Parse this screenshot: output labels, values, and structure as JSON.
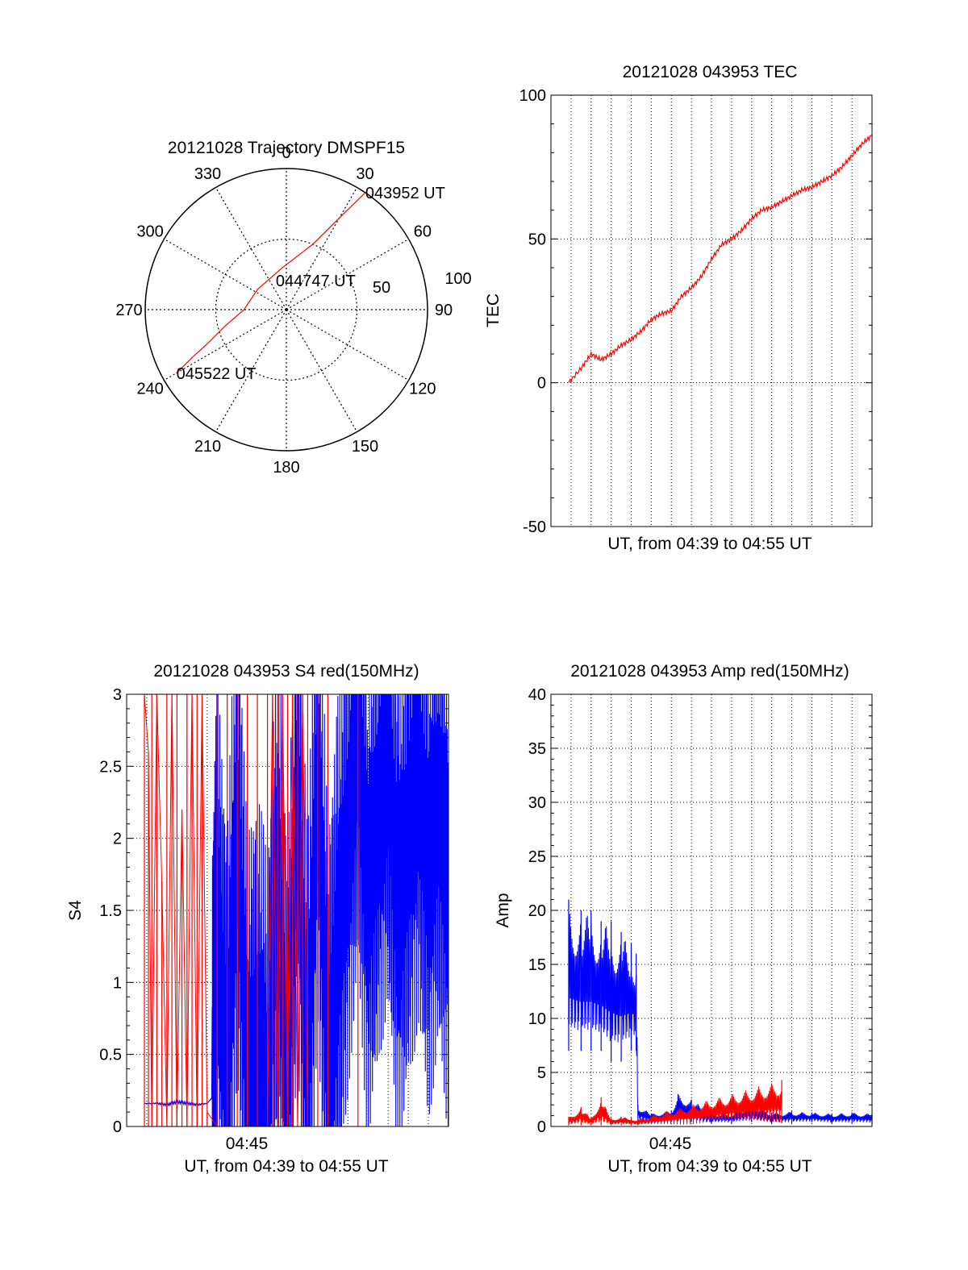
{
  "chart_data": [
    {
      "type": "polar",
      "title": "20121028 Trajectory DMSPF15",
      "angular_ticks": [
        "0",
        "30",
        "60",
        "90",
        "120",
        "150",
        "180",
        "210",
        "240",
        "270",
        "300",
        "330"
      ],
      "radial_ticks": [
        "50",
        "100"
      ],
      "radial_max": 100,
      "series": [
        {
          "color": "#ff0000",
          "points": [
            {
              "azimuth": 34,
              "zenith": 100
            },
            {
              "azimuth": 30,
              "zenith": 75
            },
            {
              "azimuth": 22,
              "zenith": 50
            },
            {
              "azimuth": -5,
              "zenith": 30
            },
            {
              "azimuth": -55,
              "zenith": 25
            },
            {
              "azimuth": -90,
              "zenith": 30
            },
            {
              "azimuth": -105,
              "zenith": 45
            },
            {
              "azimuth": -113,
              "zenith": 60
            },
            {
              "azimuth": -117,
              "zenith": 75
            },
            {
              "azimuth": -120,
              "zenith": 90
            }
          ]
        }
      ],
      "annotations": [
        {
          "text": "043952 UT",
          "azimuth": 34,
          "zenith": 100
        },
        {
          "text": "044747 UT",
          "azimuth": -20,
          "zenith": 22
        },
        {
          "text": "045522 UT",
          "azimuth": -120,
          "zenith": 90
        }
      ],
      "grid": true
    },
    {
      "type": "line",
      "title": "20121028 043953 TEC",
      "xlabel": "UT, from 04:39 to 04:55 UT",
      "ylabel": "TEC",
      "ylim": [
        -50,
        100
      ],
      "xlim": [
        "04:39",
        "04:55"
      ],
      "yticks": [
        "-50",
        "0",
        "50",
        "100"
      ],
      "xticks": [],
      "grid": true,
      "series": [
        {
          "color": "#ff0000",
          "x": [
            "04:39:53",
            "04:40:30",
            "04:41:00",
            "04:41:30",
            "04:42:00",
            "04:42:30",
            "04:43:00",
            "04:43:30",
            "04:44:00",
            "04:44:30",
            "04:45:00",
            "04:45:30",
            "04:46:00",
            "04:46:30",
            "04:47:00",
            "04:47:30",
            "04:48:00",
            "04:48:30",
            "04:49:00",
            "04:49:30",
            "04:50:00",
            "04:50:30",
            "04:51:00",
            "04:51:30",
            "04:52:00",
            "04:52:30",
            "04:53:00",
            "04:53:30",
            "04:54:00",
            "04:54:30",
            "04:55:00"
          ],
          "y": [
            0,
            5,
            10,
            8,
            10,
            13,
            15,
            18,
            22,
            24,
            25,
            30,
            33,
            37,
            43,
            48,
            50,
            53,
            57,
            60,
            61,
            63,
            65,
            67,
            68,
            70,
            72,
            75,
            79,
            83,
            86
          ]
        }
      ]
    },
    {
      "type": "line",
      "title": "20121028 043953 S4 red(150MHz)",
      "xlabel": "UT, from 04:39 to 04:55 UT",
      "ylabel": "S4",
      "ylim": [
        0,
        3
      ],
      "xlim": [
        "04:39",
        "04:55"
      ],
      "yticks": [
        "0",
        "0.5",
        "1",
        "1.5",
        "2",
        "2.5",
        "3"
      ],
      "xticks": [
        "04:45"
      ],
      "grid": true,
      "series": [
        {
          "color": "#ff0000",
          "description_values": "red S4 spikes",
          "x": [
            "04:39:53",
            "04:40:05",
            "04:40:15",
            "04:40:30",
            "04:40:45",
            "04:41:00",
            "04:41:15",
            "04:41:30",
            "04:41:45",
            "04:42:00",
            "04:42:15",
            "04:42:30",
            "04:42:45",
            "04:43:00",
            "04:43:30",
            "04:44:00",
            "04:44:30",
            "04:45:00",
            "04:45:30",
            "04:46:00",
            "04:46:15",
            "04:46:30",
            "04:46:45",
            "04:47:00",
            "04:47:15",
            "04:47:30",
            "04:47:45",
            "04:48:00",
            "04:48:30",
            "04:49:00",
            "04:50:30"
          ],
          "y": [
            3,
            2.6,
            0,
            3,
            1.7,
            0,
            3,
            0,
            2.2,
            0,
            3,
            0,
            3,
            0.1,
            0,
            0,
            0,
            0,
            0,
            0,
            3,
            0,
            3,
            0,
            3,
            0,
            3,
            0,
            0,
            0,
            0
          ]
        },
        {
          "color": "#0000ff",
          "x": [
            "04:39:53",
            "04:40:30",
            "04:41:00",
            "04:41:30",
            "04:42:00",
            "04:42:30",
            "04:43:00",
            "04:43:15",
            "04:43:30",
            "04:44:00",
            "04:44:30",
            "04:45:00",
            "04:45:30",
            "04:46:00",
            "04:46:30",
            "04:47:00",
            "04:47:30",
            "04:48:00",
            "04:48:30",
            "04:49:00",
            "04:49:30",
            "04:50:00",
            "04:50:30",
            "04:51:00",
            "04:51:30",
            "04:52:00",
            "04:52:30",
            "04:53:00",
            "04:53:30",
            "04:54:00",
            "04:54:30",
            "04:55:00"
          ],
          "y": [
            0.16,
            0.16,
            0.15,
            0.17,
            0.16,
            0.15,
            0.16,
            0.2,
            1.4,
            0.3,
            2.2,
            0.2,
            0.6,
            0.1,
            1.8,
            0.2,
            2.4,
            0.2,
            2.6,
            0.3,
            1.2,
            2.0,
            2.8,
            1.6,
            2.2,
            2.6,
            1.5,
            2.0,
            2.5,
            1.8,
            2.3,
            1.7
          ]
        }
      ]
    },
    {
      "type": "line",
      "title": "20121028 043953 Amp red(150MHz)",
      "xlabel": "UT, from 04:39 to 04:55 UT",
      "ylabel": "Amp",
      "ylim": [
        0,
        40
      ],
      "xlim": [
        "04:39",
        "04:55"
      ],
      "yticks": [
        "0",
        "5",
        "10",
        "15",
        "20",
        "25",
        "30",
        "35",
        "40"
      ],
      "xticks": [
        "04:45"
      ],
      "grid": true,
      "series": [
        {
          "color": "#0000ff",
          "x": [
            "04:39:53",
            "04:40:30",
            "04:41:00",
            "04:41:30",
            "04:42:00",
            "04:42:30",
            "04:43:00",
            "04:43:15",
            "04:43:20",
            "04:44:00",
            "04:45:00",
            "04:45:20",
            "04:46:00",
            "04:47:00",
            "04:48:00",
            "04:49:00",
            "04:50:00",
            "04:51:00",
            "04:52:00",
            "04:53:00",
            "04:54:00",
            "04:55:00"
          ],
          "y_min": [
            7,
            7,
            7,
            7,
            6,
            6,
            7,
            7,
            0.5,
            0.3,
            0.4,
            0.5,
            0.4,
            0.3,
            0.3,
            0.4,
            0.3,
            0.3,
            0.4,
            0.3,
            0.3,
            0.3
          ],
          "y_max": [
            21,
            20,
            20,
            19,
            19,
            18,
            17,
            16,
            2,
            1.2,
            1.5,
            3,
            2.5,
            1.3,
            1.2,
            2.2,
            1.3,
            1.4,
            1.3,
            1.2,
            1.3,
            1.2
          ]
        },
        {
          "color": "#ff0000",
          "x": [
            "04:39:53",
            "04:40:30",
            "04:41:00",
            "04:41:30",
            "04:42:00",
            "04:42:30",
            "04:43:00",
            "04:43:20",
            "04:50:30"
          ],
          "y_min": [
            0.1,
            0.1,
            0.1,
            0.1,
            0.1,
            0.1,
            0.1,
            0.1,
            0.3
          ],
          "y_max": [
            0.9,
            1.8,
            0.8,
            2.7,
            0.8,
            0.9,
            0.8,
            0.7,
            4.3
          ]
        }
      ]
    }
  ]
}
